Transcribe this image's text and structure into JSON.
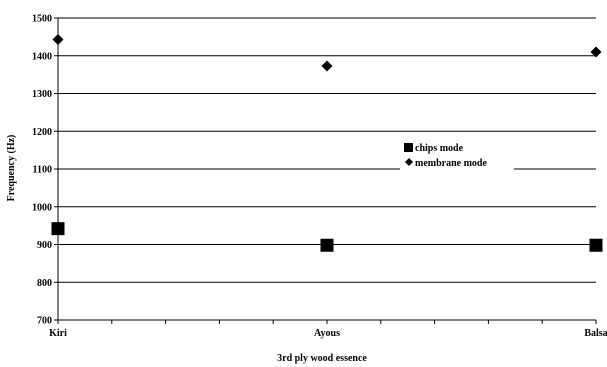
{
  "chart_data": {
    "type": "scatter",
    "categories": [
      "Kiri",
      "Ayous",
      "Balsa"
    ],
    "series": [
      {
        "name": "chips mode",
        "marker": "square",
        "color": "#000000",
        "values": [
          942,
          898,
          898
        ]
      },
      {
        "name": "membrane mode",
        "marker": "diamond",
        "color": "#000000",
        "values": [
          1443,
          1373,
          1410
        ]
      }
    ],
    "xlabel": "3rd ply wood essence",
    "ylabel": "Frequency (Hz)",
    "ylim": [
      700,
      1500
    ],
    "yticks": [
      700,
      800,
      900,
      1000,
      1100,
      1200,
      1300,
      1400,
      1500
    ],
    "grid": "horizontal",
    "legend_position": "center-right"
  }
}
